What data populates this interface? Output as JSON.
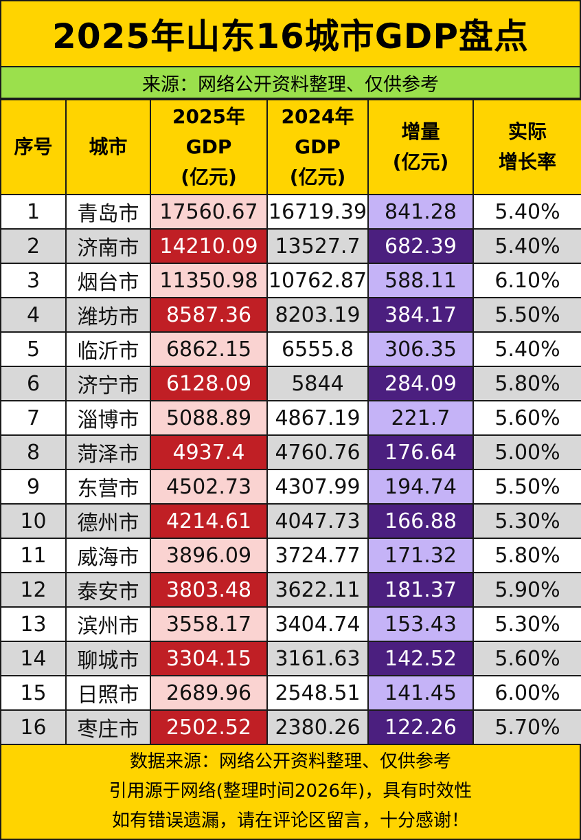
{
  "title": "2025年山东16城市GDP盘点",
  "source_bar": "来源：网络公开资料整理、仅供参考",
  "columns": {
    "rank": "序号",
    "city": "城市",
    "gdp2025": [
      "2025年",
      "GDP",
      "(亿元)"
    ],
    "gdp2024": [
      "2024年",
      "GDP",
      "(亿元)"
    ],
    "increase": [
      "增量",
      "(亿元)"
    ],
    "growth": [
      "实际",
      "增长率"
    ]
  },
  "chart_data": {
    "type": "table",
    "title": "2025年山东16城市GDP盘点",
    "columns": [
      "序号",
      "城市",
      "2025年GDP(亿元)",
      "2024年GDP(亿元)",
      "增量(亿元)",
      "实际增长率"
    ],
    "rows": [
      {
        "rank": "1",
        "city": "青岛市",
        "gdp2025": "17560.67",
        "gdp2024": "16719.39",
        "increase": "841.28",
        "growth": "5.40%"
      },
      {
        "rank": "2",
        "city": "济南市",
        "gdp2025": "14210.09",
        "gdp2024": "13527.7",
        "increase": "682.39",
        "growth": "5.40%"
      },
      {
        "rank": "3",
        "city": "烟台市",
        "gdp2025": "11350.98",
        "gdp2024": "10762.87",
        "increase": "588.11",
        "growth": "6.10%"
      },
      {
        "rank": "4",
        "city": "潍坊市",
        "gdp2025": "8587.36",
        "gdp2024": "8203.19",
        "increase": "384.17",
        "growth": "5.50%"
      },
      {
        "rank": "5",
        "city": "临沂市",
        "gdp2025": "6862.15",
        "gdp2024": "6555.8",
        "increase": "306.35",
        "growth": "5.40%"
      },
      {
        "rank": "6",
        "city": "济宁市",
        "gdp2025": "6128.09",
        "gdp2024": "5844",
        "increase": "284.09",
        "growth": "5.80%"
      },
      {
        "rank": "7",
        "city": "淄博市",
        "gdp2025": "5088.89",
        "gdp2024": "4867.19",
        "increase": "221.7",
        "growth": "5.60%"
      },
      {
        "rank": "8",
        "city": "菏泽市",
        "gdp2025": "4937.4",
        "gdp2024": "4760.76",
        "increase": "176.64",
        "growth": "5.00%"
      },
      {
        "rank": "9",
        "city": "东营市",
        "gdp2025": "4502.73",
        "gdp2024": "4307.99",
        "increase": "194.74",
        "growth": "5.50%"
      },
      {
        "rank": "10",
        "city": "德州市",
        "gdp2025": "4214.61",
        "gdp2024": "4047.73",
        "increase": "166.88",
        "growth": "5.30%"
      },
      {
        "rank": "11",
        "city": "威海市",
        "gdp2025": "3896.09",
        "gdp2024": "3724.77",
        "increase": "171.32",
        "growth": "5.80%"
      },
      {
        "rank": "12",
        "city": "泰安市",
        "gdp2025": "3803.48",
        "gdp2024": "3622.11",
        "increase": "181.37",
        "growth": "5.90%"
      },
      {
        "rank": "13",
        "city": "滨州市",
        "gdp2025": "3558.17",
        "gdp2024": "3404.74",
        "increase": "153.43",
        "growth": "5.30%"
      },
      {
        "rank": "14",
        "city": "聊城市",
        "gdp2025": "3304.15",
        "gdp2024": "3161.63",
        "increase": "142.52",
        "growth": "5.60%"
      },
      {
        "rank": "15",
        "city": "日照市",
        "gdp2025": "2689.96",
        "gdp2024": "2548.51",
        "increase": "141.45",
        "growth": "6.00%"
      },
      {
        "rank": "16",
        "city": "枣庄市",
        "gdp2025": "2502.52",
        "gdp2024": "2380.26",
        "increase": "122.26",
        "growth": "5.70%"
      }
    ]
  },
  "footer": [
    "数据来源：网络公开资料整理、仅供参考",
    "引用源于网络(整理时间2026年)，具有时效性",
    "如有错误遗漏，请在评论区留言，十分感谢！"
  ],
  "colors": {
    "background": "#FFD400",
    "source_bar": "#9BE04C",
    "gdp2025_light": "#FAD3D1",
    "gdp2025_dark": "#C01F25",
    "increase_light": "#C5B3F7",
    "increase_dark": "#4B1F7F",
    "row_alt": "#D8D8D8"
  }
}
